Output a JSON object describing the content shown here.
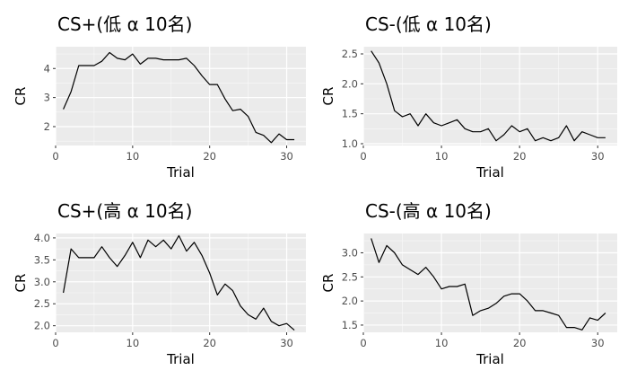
{
  "chart_data": [
    {
      "type": "line",
      "title": "CS+(低 α 10名)",
      "xlabel": "Trial",
      "ylabel": "CR",
      "xlim": [
        0,
        32.5
      ],
      "ylim": [
        1.35,
        4.75
      ],
      "xticks": [
        0,
        10,
        20,
        30
      ],
      "yticks": [
        2,
        3,
        4
      ],
      "grid": true,
      "x": [
        1,
        2,
        3,
        4,
        5,
        6,
        7,
        8,
        9,
        10,
        11,
        12,
        13,
        14,
        15,
        16,
        17,
        18,
        19,
        20,
        21,
        22,
        23,
        24,
        25,
        26,
        27,
        28,
        29,
        30,
        31
      ],
      "values": [
        2.6,
        3.2,
        4.1,
        4.1,
        4.1,
        4.25,
        4.55,
        4.35,
        4.3,
        4.5,
        4.15,
        4.35,
        4.35,
        4.3,
        4.3,
        4.3,
        4.35,
        4.1,
        3.75,
        3.45,
        3.45,
        2.95,
        2.55,
        2.6,
        2.35,
        1.8,
        1.7,
        1.45,
        1.75,
        1.55,
        1.55
      ]
    },
    {
      "type": "line",
      "title": "CS-(低 α 10名)",
      "xlabel": "Trial",
      "ylabel": "CR",
      "xlim": [
        0,
        32.5
      ],
      "ylim": [
        0.97,
        2.62
      ],
      "xticks": [
        0,
        10,
        20,
        30
      ],
      "yticks": [
        1.0,
        1.5,
        2.0,
        2.5
      ],
      "grid": true,
      "x": [
        1,
        2,
        3,
        4,
        5,
        6,
        7,
        8,
        9,
        10,
        11,
        12,
        13,
        14,
        15,
        16,
        17,
        18,
        19,
        20,
        21,
        22,
        23,
        24,
        25,
        26,
        27,
        28,
        29,
        30,
        31
      ],
      "values": [
        2.55,
        2.35,
        2.0,
        1.55,
        1.45,
        1.5,
        1.3,
        1.5,
        1.35,
        1.3,
        1.35,
        1.4,
        1.25,
        1.2,
        1.2,
        1.25,
        1.05,
        1.15,
        1.3,
        1.2,
        1.25,
        1.05,
        1.1,
        1.05,
        1.1,
        1.3,
        1.05,
        1.2,
        1.15,
        1.1,
        1.1
      ]
    },
    {
      "type": "line",
      "title": "CS+(高 α 10名)",
      "xlabel": "Trial",
      "ylabel": "CR",
      "xlim": [
        0,
        32.5
      ],
      "ylim": [
        1.85,
        4.1
      ],
      "xticks": [
        0,
        10,
        20,
        30
      ],
      "yticks": [
        2.0,
        2.5,
        3.0,
        3.5,
        4.0
      ],
      "grid": true,
      "x": [
        1,
        2,
        3,
        4,
        5,
        6,
        7,
        8,
        9,
        10,
        11,
        12,
        13,
        14,
        15,
        16,
        17,
        18,
        19,
        20,
        21,
        22,
        23,
        24,
        25,
        26,
        27,
        28,
        29,
        30,
        31
      ],
      "values": [
        2.75,
        3.75,
        3.55,
        3.55,
        3.55,
        3.8,
        3.55,
        3.35,
        3.6,
        3.9,
        3.55,
        3.95,
        3.8,
        3.95,
        3.75,
        4.05,
        3.7,
        3.9,
        3.6,
        3.2,
        2.7,
        2.95,
        2.8,
        2.45,
        2.25,
        2.15,
        2.4,
        2.1,
        2.0,
        2.05,
        1.9
      ]
    },
    {
      "type": "line",
      "title": "CS-(高 α 10名)",
      "xlabel": "Trial",
      "ylabel": "CR",
      "xlim": [
        0,
        32.5
      ],
      "ylim": [
        1.35,
        3.4
      ],
      "xticks": [
        0,
        10,
        20,
        30
      ],
      "yticks": [
        1.5,
        2.0,
        2.5,
        3.0
      ],
      "grid": true,
      "x": [
        1,
        2,
        3,
        4,
        5,
        6,
        7,
        8,
        9,
        10,
        11,
        12,
        13,
        14,
        15,
        16,
        17,
        18,
        19,
        20,
        21,
        22,
        23,
        24,
        25,
        26,
        27,
        28,
        29,
        30,
        31
      ],
      "values": [
        3.3,
        2.8,
        3.15,
        3.0,
        2.75,
        2.65,
        2.55,
        2.7,
        2.5,
        2.25,
        2.3,
        2.3,
        2.35,
        1.7,
        1.8,
        1.85,
        1.95,
        2.1,
        2.15,
        2.15,
        2.0,
        1.8,
        1.8,
        1.75,
        1.7,
        1.45,
        1.45,
        1.4,
        1.65,
        1.6,
        1.75
      ]
    }
  ]
}
